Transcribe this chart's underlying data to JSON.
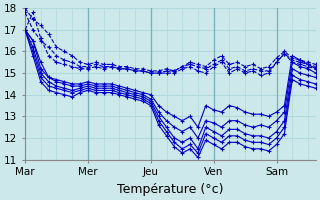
{
  "xlabel": "Température (°c)",
  "background_color": "#cce8ea",
  "grid_color": "#b0d8dc",
  "line_color": "#0000cc",
  "ylim": [
    11,
    18
  ],
  "yticks": [
    11,
    12,
    13,
    14,
    15,
    16,
    17,
    18
  ],
  "day_labels": [
    "Mar",
    "Mer",
    "Jeu",
    "Ven",
    "Sam"
  ],
  "day_positions": [
    0,
    8,
    16,
    24,
    32
  ],
  "xlabel_fontsize": 9,
  "tick_fontsize": 7.5,
  "series": [
    {
      "style": "dashed",
      "data": [
        17.0,
        17.8,
        16.6,
        15.8,
        15.5,
        15.4,
        15.3,
        15.2,
        15.2,
        15.3,
        15.2,
        15.3,
        15.2,
        15.2,
        15.1,
        15.1,
        15.0,
        15.0,
        15.0,
        15.0,
        15.2,
        15.3,
        15.1,
        15.0,
        15.3,
        15.5,
        15.0,
        15.2,
        15.0,
        15.1,
        14.9,
        15.0,
        15.5,
        15.9,
        15.5,
        15.4,
        15.3,
        15.2
      ]
    },
    {
      "style": "dashed",
      "data": [
        17.8,
        17.0,
        16.5,
        16.2,
        15.8,
        15.6,
        15.5,
        15.3,
        15.3,
        15.4,
        15.3,
        15.3,
        15.2,
        15.2,
        15.1,
        15.1,
        15.0,
        15.0,
        15.1,
        15.1,
        15.3,
        15.4,
        15.3,
        15.2,
        15.4,
        15.6,
        15.2,
        15.3,
        15.1,
        15.2,
        15.1,
        15.1,
        15.5,
        15.9,
        15.6,
        15.5,
        15.4,
        15.3
      ]
    },
    {
      "style": "dashed",
      "data": [
        18.0,
        17.5,
        17.2,
        16.8,
        16.2,
        16.0,
        15.8,
        15.5,
        15.4,
        15.5,
        15.4,
        15.4,
        15.3,
        15.3,
        15.2,
        15.2,
        15.1,
        15.1,
        15.2,
        15.1,
        15.3,
        15.5,
        15.4,
        15.3,
        15.6,
        15.8,
        15.4,
        15.5,
        15.3,
        15.4,
        15.2,
        15.3,
        15.7,
        16.0,
        15.7,
        15.6,
        15.5,
        15.4
      ]
    },
    {
      "style": "solid",
      "data": [
        17.0,
        16.5,
        15.5,
        14.8,
        14.7,
        14.6,
        14.5,
        14.5,
        14.6,
        14.5,
        14.5,
        14.5,
        14.4,
        14.3,
        14.2,
        14.1,
        14.0,
        13.5,
        13.2,
        13.0,
        12.8,
        13.0,
        12.5,
        13.5,
        13.3,
        13.2,
        13.5,
        13.4,
        13.2,
        13.1,
        13.1,
        13.0,
        13.2,
        13.5,
        15.8,
        15.6,
        15.4,
        15.2
      ]
    },
    {
      "style": "solid",
      "data": [
        17.0,
        16.5,
        15.2,
        14.8,
        14.6,
        14.5,
        14.4,
        14.4,
        14.5,
        14.4,
        14.4,
        14.4,
        14.3,
        14.2,
        14.1,
        14.0,
        13.8,
        13.2,
        12.8,
        12.5,
        12.3,
        12.5,
        12.0,
        12.8,
        12.7,
        12.5,
        12.8,
        12.8,
        12.6,
        12.5,
        12.6,
        12.5,
        12.8,
        13.2,
        15.5,
        15.3,
        15.2,
        15.0
      ]
    },
    {
      "style": "solid",
      "data": [
        17.0,
        16.2,
        15.0,
        14.6,
        14.4,
        14.3,
        14.2,
        14.3,
        14.4,
        14.3,
        14.3,
        14.3,
        14.2,
        14.1,
        14.0,
        13.9,
        13.7,
        13.0,
        12.5,
        12.0,
        11.8,
        12.0,
        11.5,
        12.5,
        12.3,
        12.1,
        12.4,
        12.4,
        12.2,
        12.1,
        12.1,
        12.0,
        12.3,
        12.8,
        15.2,
        15.0,
        14.9,
        14.8
      ]
    },
    {
      "style": "solid",
      "data": [
        17.0,
        16.0,
        14.8,
        14.4,
        14.3,
        14.2,
        14.1,
        14.2,
        14.3,
        14.2,
        14.2,
        14.2,
        14.1,
        14.0,
        13.9,
        13.8,
        13.6,
        12.8,
        12.3,
        11.8,
        11.5,
        11.7,
        11.3,
        12.2,
        12.0,
        11.8,
        12.1,
        12.1,
        11.9,
        11.8,
        11.8,
        11.7,
        12.0,
        12.5,
        14.9,
        14.7,
        14.6,
        14.5
      ]
    },
    {
      "style": "solid",
      "data": [
        17.0,
        15.8,
        14.6,
        14.2,
        14.1,
        14.0,
        13.9,
        14.1,
        14.2,
        14.1,
        14.1,
        14.1,
        14.0,
        13.9,
        13.8,
        13.7,
        13.5,
        12.6,
        12.1,
        11.6,
        11.3,
        11.5,
        11.1,
        11.9,
        11.7,
        11.5,
        11.8,
        11.8,
        11.6,
        11.5,
        11.5,
        11.4,
        11.7,
        12.2,
        14.7,
        14.5,
        14.4,
        14.3
      ]
    }
  ]
}
